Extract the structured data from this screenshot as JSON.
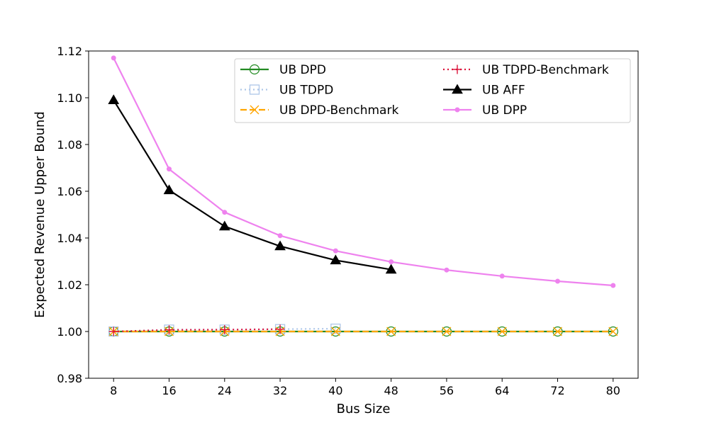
{
  "chart_data": {
    "type": "line",
    "xlabel": "Bus Size",
    "ylabel": "Expected Revenue Upper Bound",
    "x_ticks": [
      "8",
      "16",
      "24",
      "32",
      "40",
      "48",
      "56",
      "64",
      "72",
      "80"
    ],
    "y_ticks": [
      "0.98",
      "1.00",
      "1.02",
      "1.04",
      "1.06",
      "1.08",
      "1.10",
      "1.12"
    ],
    "xlim": [
      4.4,
      83.6
    ],
    "ylim": [
      0.98,
      1.12
    ],
    "grid": false,
    "legend_position": "top-right",
    "series": [
      {
        "name": "UB DPD",
        "color": "#228b22",
        "linestyle": "solid",
        "marker": "circle-open",
        "x": [
          8,
          16,
          24,
          32,
          40,
          48,
          56,
          64,
          72,
          80
        ],
        "y": [
          1.0,
          1.0,
          1.0,
          1.0,
          1.0,
          1.0,
          1.0,
          1.0,
          1.0,
          1.0
        ]
      },
      {
        "name": "UB TDPD",
        "color": "#aec7e8",
        "linestyle": "dotted",
        "marker": "square-open",
        "x": [
          8,
          16,
          24,
          32,
          40
        ],
        "y": [
          1.0,
          1.0008,
          1.0008,
          1.001,
          1.0012
        ]
      },
      {
        "name": "UB DPD-Benchmark",
        "color": "#ffa500",
        "linestyle": "dashed",
        "marker": "x",
        "x": [
          8,
          16,
          24,
          32,
          40,
          48,
          56,
          64,
          72,
          80
        ],
        "y": [
          1.0,
          1.0,
          1.0,
          1.0,
          1.0,
          1.0,
          1.0,
          1.0,
          1.0,
          1.0
        ]
      },
      {
        "name": "UB TDPD-Benchmark",
        "color": "#dc143c",
        "linestyle": "dotted",
        "marker": "plus",
        "x": [
          8,
          16,
          24,
          32
        ],
        "y": [
          1.0,
          1.0007,
          1.0008,
          1.001
        ]
      },
      {
        "name": "UB AFF",
        "color": "#000000",
        "linestyle": "solid",
        "marker": "triangle",
        "x": [
          8,
          16,
          24,
          32,
          40,
          48
        ],
        "y": [
          1.099,
          1.0605,
          1.045,
          1.0365,
          1.0305,
          1.0265
        ]
      },
      {
        "name": "UB DPP",
        "color": "#ee82ee",
        "linestyle": "solid",
        "marker": "dot",
        "x": [
          8,
          16,
          24,
          32,
          40,
          48,
          56,
          64,
          72,
          80
        ],
        "y": [
          1.117,
          1.0695,
          1.051,
          1.041,
          1.0345,
          1.0298,
          1.0263,
          1.0237,
          1.0215,
          1.0197
        ]
      }
    ]
  }
}
